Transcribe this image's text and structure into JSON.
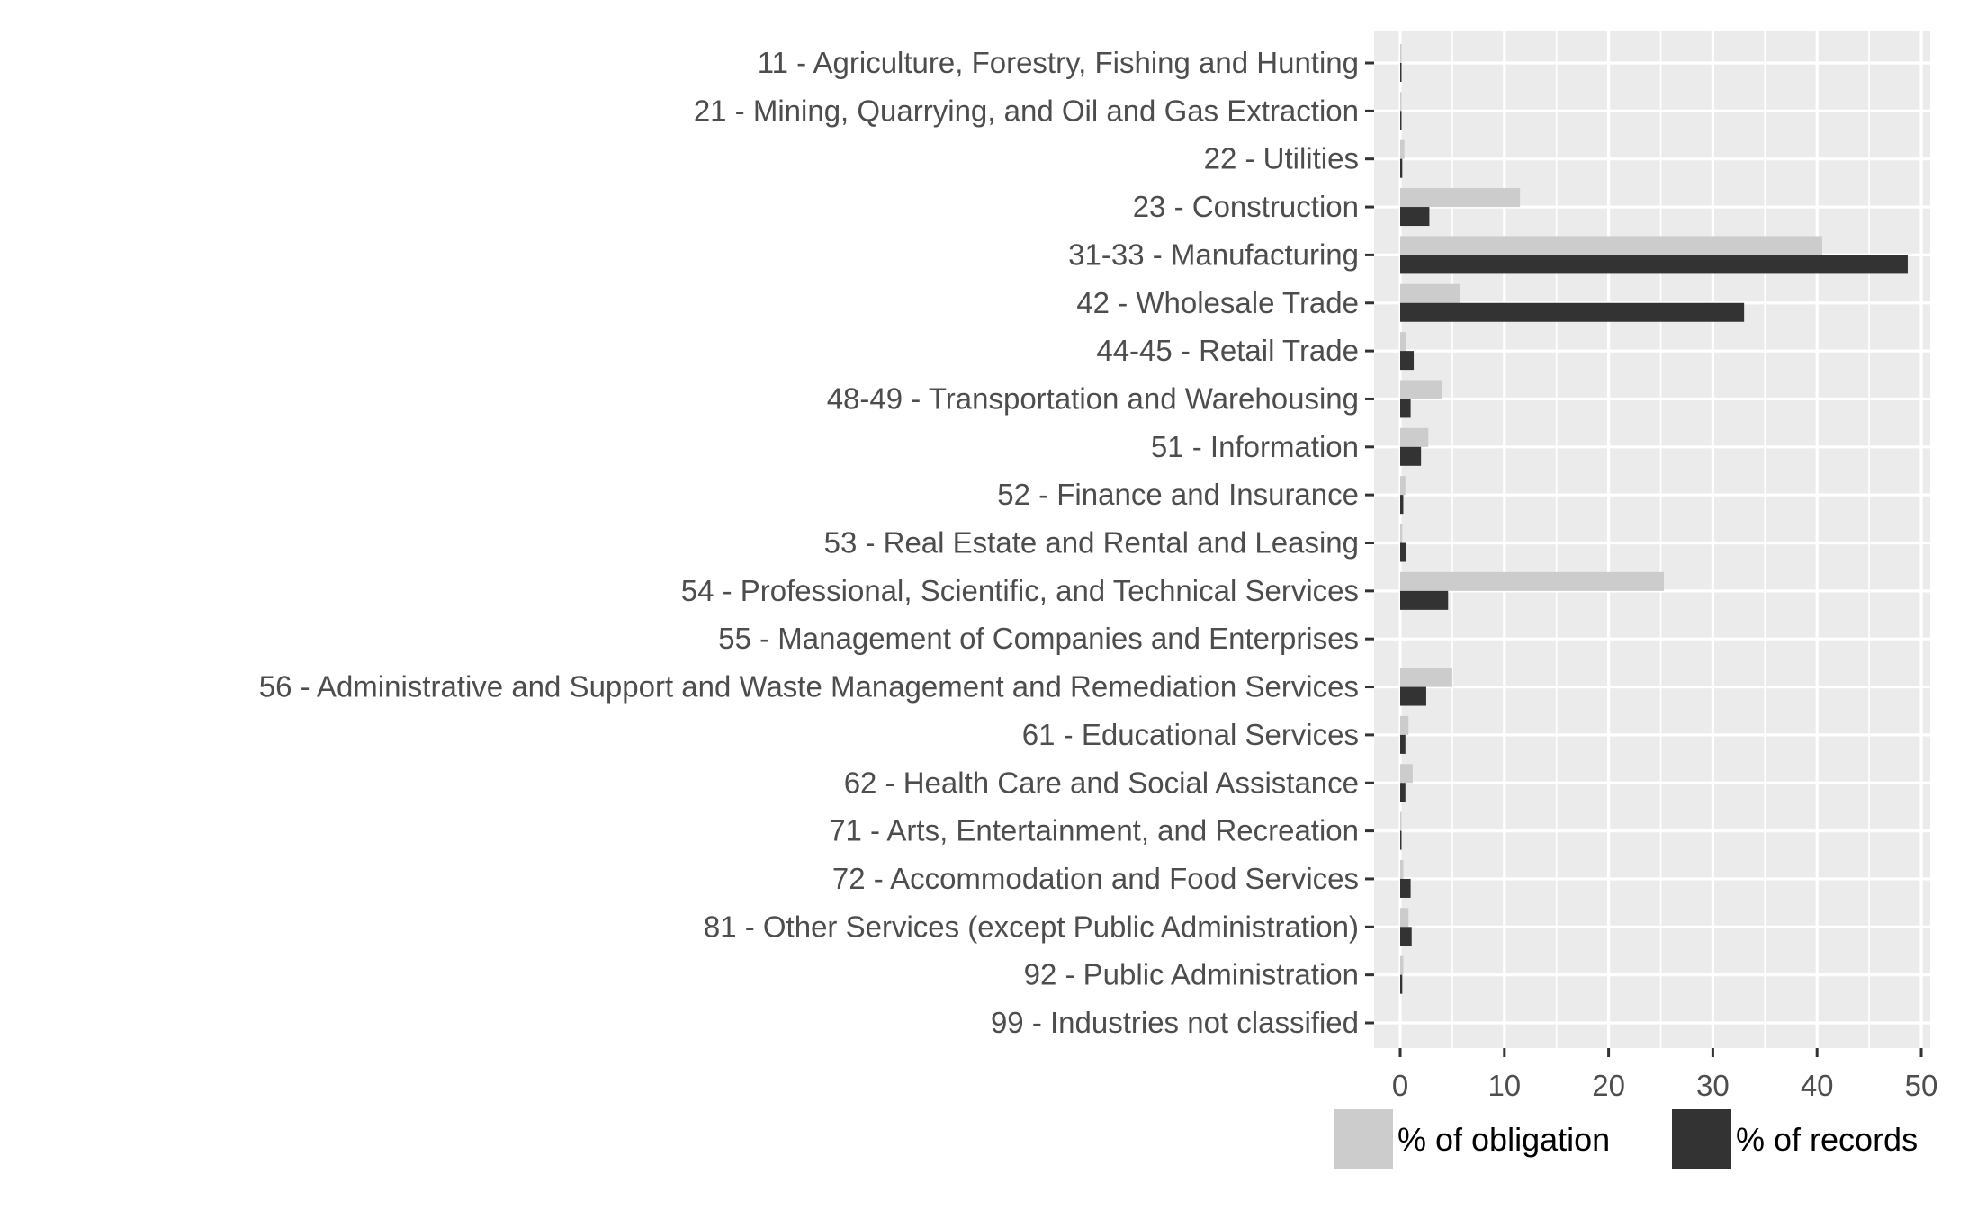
{
  "chart_data": {
    "type": "bar",
    "orientation": "horizontal",
    "categories": [
      "11  -  Agriculture, Forestry, Fishing and Hunting",
      "21  -  Mining, Quarrying, and Oil and Gas Extraction",
      "22  -  Utilities",
      "23  -  Construction",
      "31-33  -  Manufacturing",
      "42  -  Wholesale Trade",
      "44-45  -  Retail Trade",
      "48-49  -  Transportation and Warehousing",
      "51  -  Information",
      "52  -  Finance and Insurance",
      "53  -  Real Estate and Rental and Leasing",
      "54  -  Professional, Scientific, and Technical Services",
      "55  -  Management of Companies and Enterprises",
      "56  -  Administrative and Support and Waste Management and Remediation Services",
      "61  -  Educational Services",
      "62  -  Health Care and Social Assistance",
      "71  -  Arts, Entertainment, and Recreation",
      "72  -  Accommodation and Food Services",
      "81  -  Other Services (except Public Administration)",
      "92  -  Public Administration",
      "99  -  Industries not classified"
    ],
    "series": [
      {
        "name": "% of obligation",
        "color": "#cccccc",
        "values": [
          0.1,
          0.1,
          0.4,
          11.5,
          40.5,
          5.7,
          0.6,
          4.0,
          2.7,
          0.5,
          0.2,
          25.3,
          0.0,
          5.0,
          0.8,
          1.2,
          0.1,
          0.3,
          0.8,
          0.3,
          0.0
        ]
      },
      {
        "name": "% of records",
        "color": "#333333",
        "values": [
          0.1,
          0.1,
          0.2,
          2.8,
          48.7,
          33.0,
          1.3,
          1.0,
          2.0,
          0.3,
          0.6,
          4.6,
          0.0,
          2.5,
          0.5,
          0.5,
          0.1,
          1.0,
          1.1,
          0.2,
          0.0
        ]
      }
    ],
    "xlim": [
      0,
      50
    ],
    "xticks": [
      "0",
      "10",
      "20",
      "30",
      "40",
      "50"
    ],
    "xlabel": "",
    "ylabel": "",
    "title": "",
    "grid": true,
    "panel_background": "#ebebeb",
    "legend": {
      "position": "bottom"
    }
  }
}
